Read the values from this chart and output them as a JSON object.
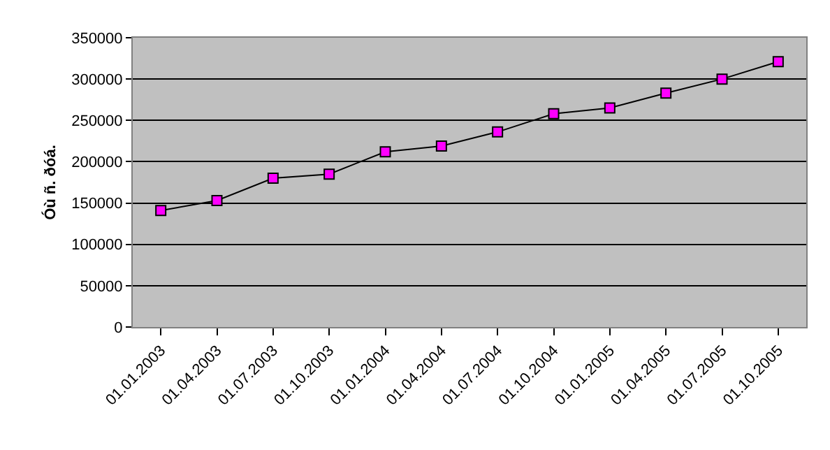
{
  "chart_data": {
    "type": "line",
    "ylabel": "Óù ñ. ðóá.",
    "categories": [
      "01.01.2003",
      "01.04.2003",
      "01.07.2003",
      "01.10.2003",
      "01.01.2004",
      "01.04.2004",
      "01.07.2004",
      "01.10.2004",
      "01.01.2005",
      "01.04.2005",
      "01.07.2005",
      "01.10.2005"
    ],
    "series": [
      {
        "color": "#ff00ff",
        "values": [
          141000,
          153000,
          180000,
          185000,
          212000,
          219000,
          236000,
          258000,
          265000,
          283000,
          300000,
          321000
        ]
      }
    ],
    "ylim": [
      0,
      350000
    ],
    "yticks": [
      0,
      50000,
      100000,
      150000,
      200000,
      250000,
      300000,
      350000
    ],
    "grid": "y",
    "marker": "square",
    "line_style": "solid"
  }
}
